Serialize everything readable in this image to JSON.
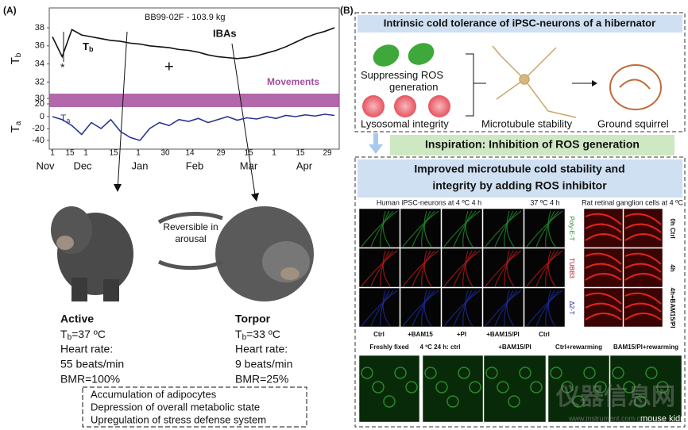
{
  "panel_a": {
    "label": "(A)",
    "chart": {
      "title": "BB99-02F - 103.9 kg",
      "tb_axis": {
        "sym": "T",
        "sub": "b"
      },
      "ta_axis": {
        "sym": "T",
        "sub": "a"
      },
      "tb_ticks": [
        38,
        36,
        34,
        32
      ],
      "movement_ticks": [
        30,
        20
      ],
      "ta_ticks": [
        0,
        -20,
        -40
      ],
      "day_ticks": [
        1,
        15,
        1,
        15,
        1,
        30,
        14,
        29,
        15,
        1,
        15,
        29
      ],
      "months": [
        "Nov",
        "Dec",
        "Jan",
        "Feb",
        "Mar",
        "Apr"
      ],
      "tb_label": {
        "sym": "T",
        "sub": "b"
      },
      "ta_label": {
        "sym": "T",
        "sub": "a"
      },
      "ibas": "IBAs",
      "movements": "Movements",
      "star": "*",
      "plus": "+",
      "tb_values": [
        37.0,
        34.8,
        37.8,
        37.2,
        37.0,
        36.8,
        36.6,
        36.5,
        36.3,
        36.2,
        36.0,
        35.9,
        35.8,
        35.6,
        35.5,
        35.3,
        35.0,
        34.8,
        34.7,
        34.6,
        34.7,
        34.9,
        35.2,
        35.5,
        35.9,
        36.4,
        36.9,
        37.3,
        37.6,
        38.0
      ],
      "ta_values": [
        0,
        -5,
        -15,
        -30,
        -10,
        -20,
        -5,
        -25,
        -35,
        -40,
        -20,
        -10,
        -15,
        -5,
        -8,
        -3,
        -10,
        -5,
        0,
        -6,
        -2,
        -4,
        0,
        -3,
        2,
        0,
        3,
        1,
        4,
        2
      ]
    },
    "cycle": "Reversible in arousal",
    "active": {
      "title": "Active",
      "tb": {
        "sym": "T",
        "sub": "b",
        "value": "=37 ºC"
      },
      "hr_label": "Heart rate:",
      "hr": "55 beats/min",
      "bmr": "BMR=100%"
    },
    "torpor": {
      "title": "Torpor",
      "tb": {
        "sym": "T",
        "sub": "b",
        "value": "=33 ºC"
      },
      "hr_label": "Heart rate:",
      "hr": "9 beats/min",
      "bmr": "BMR=25%"
    },
    "effects": [
      "Accumulation of adipocytes",
      "Depression of overall metabolic state",
      "Upregulation of stress defense system"
    ]
  },
  "panel_b": {
    "label": "(B)",
    "title": "Intrinsic cold tolerance of iPSC-neurons of a hibernator",
    "items": [
      "Suppressing ROS generation",
      "Lysosomal integrity",
      "Microtubule stability",
      "Ground squirrel"
    ],
    "inspiration": "Inspiration: Inhibition of ROS generation",
    "result_title": [
      "Improved microtubule cold stability and",
      "integrity by adding ROS inhibitor"
    ],
    "human_header": "Human iPSC-neurons at 4 ºC 4 h",
    "warm_header": "37 ºC 4 h",
    "rat_header": "Rat retinal ganglion cells at 4 ºC",
    "stains": [
      "Poly-E-T",
      "TUBB3",
      "Δ2-T"
    ],
    "rat_rows": [
      "0h Ctrl",
      "4h",
      "4h+BAM15/PI"
    ],
    "columns": [
      "Ctrl",
      "+BAM15",
      "+PI",
      "+BAM15/PI",
      "Ctrl"
    ],
    "kidney_columns": [
      "Freshly fixed",
      "4 ºC 24 h: ctrl",
      "+BAM15/PI",
      "Ctrl+rewarming",
      "BAM15/PI+rewarming"
    ],
    "kidney_label": "mouse kidneys"
  },
  "watermark": {
    "name": "仪器信息网",
    "url": "www.instrument.com.cn"
  }
}
